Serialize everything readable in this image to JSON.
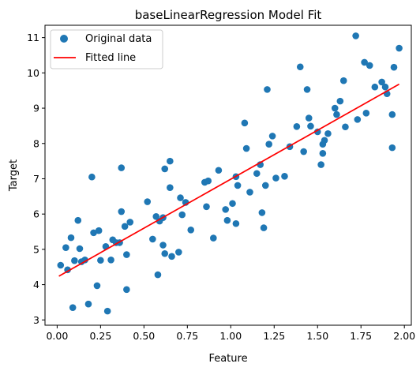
{
  "chart_data": {
    "type": "scatter",
    "title": "baseLinearRegression Model Fit",
    "xlabel": "Feature",
    "ylabel": "Target",
    "xlim": [
      -0.07,
      2.04
    ],
    "ylim": [
      2.85,
      11.35
    ],
    "xticks": [
      0.0,
      0.25,
      0.5,
      0.75,
      1.0,
      1.25,
      1.5,
      1.75,
      2.0
    ],
    "xtick_labels": [
      "0.00",
      "0.25",
      "0.50",
      "0.75",
      "1.00",
      "1.25",
      "1.50",
      "1.75",
      "2.00"
    ],
    "yticks": [
      3,
      4,
      5,
      6,
      7,
      8,
      9,
      10,
      11
    ],
    "ytick_labels": [
      "3",
      "4",
      "5",
      "6",
      "7",
      "8",
      "9",
      "10",
      "11"
    ],
    "legend_position": "top-left",
    "series": [
      {
        "name": "Original data",
        "kind": "scatter",
        "color": "#1f77b4",
        "points": [
          [
            0.02,
            4.55
          ],
          [
            0.05,
            5.05
          ],
          [
            0.06,
            4.42
          ],
          [
            0.08,
            5.33
          ],
          [
            0.09,
            3.35
          ],
          [
            0.1,
            4.68
          ],
          [
            0.12,
            5.82
          ],
          [
            0.13,
            5.02
          ],
          [
            0.14,
            4.65
          ],
          [
            0.16,
            4.7
          ],
          [
            0.18,
            3.45
          ],
          [
            0.2,
            7.05
          ],
          [
            0.21,
            5.47
          ],
          [
            0.23,
            3.97
          ],
          [
            0.24,
            5.53
          ],
          [
            0.25,
            4.69
          ],
          [
            0.28,
            5.08
          ],
          [
            0.29,
            3.25
          ],
          [
            0.31,
            4.7
          ],
          [
            0.32,
            5.27
          ],
          [
            0.34,
            5.19
          ],
          [
            0.36,
            5.19
          ],
          [
            0.37,
            6.07
          ],
          [
            0.37,
            7.31
          ],
          [
            0.39,
            5.65
          ],
          [
            0.4,
            3.86
          ],
          [
            0.4,
            4.85
          ],
          [
            0.42,
            5.77
          ],
          [
            0.52,
            6.35
          ],
          [
            0.55,
            5.29
          ],
          [
            0.57,
            5.93
          ],
          [
            0.58,
            4.28
          ],
          [
            0.59,
            5.8
          ],
          [
            0.61,
            5.9
          ],
          [
            0.61,
            5.12
          ],
          [
            0.62,
            4.88
          ],
          [
            0.62,
            7.28
          ],
          [
            0.65,
            7.5
          ],
          [
            0.65,
            6.75
          ],
          [
            0.66,
            4.8
          ],
          [
            0.7,
            4.92
          ],
          [
            0.71,
            6.46
          ],
          [
            0.72,
            5.98
          ],
          [
            0.74,
            6.33
          ],
          [
            0.77,
            5.55
          ],
          [
            0.85,
            6.9
          ],
          [
            0.86,
            6.21
          ],
          [
            0.87,
            6.94
          ],
          [
            0.9,
            5.32
          ],
          [
            0.93,
            7.24
          ],
          [
            0.97,
            6.13
          ],
          [
            0.98,
            5.82
          ],
          [
            1.01,
            6.3
          ],
          [
            1.03,
            7.06
          ],
          [
            1.03,
            5.73
          ],
          [
            1.04,
            6.81
          ],
          [
            1.08,
            8.58
          ],
          [
            1.09,
            7.86
          ],
          [
            1.11,
            6.62
          ],
          [
            1.15,
            7.15
          ],
          [
            1.17,
            7.4
          ],
          [
            1.18,
            6.04
          ],
          [
            1.19,
            5.61
          ],
          [
            1.2,
            6.81
          ],
          [
            1.21,
            9.53
          ],
          [
            1.22,
            7.98
          ],
          [
            1.24,
            8.21
          ],
          [
            1.26,
            7.02
          ],
          [
            1.31,
            7.07
          ],
          [
            1.34,
            7.91
          ],
          [
            1.38,
            8.48
          ],
          [
            1.4,
            10.17
          ],
          [
            1.42,
            7.77
          ],
          [
            1.44,
            9.53
          ],
          [
            1.45,
            8.72
          ],
          [
            1.46,
            8.49
          ],
          [
            1.5,
            8.33
          ],
          [
            1.52,
            7.4
          ],
          [
            1.53,
            7.72
          ],
          [
            1.53,
            7.98
          ],
          [
            1.54,
            8.09
          ],
          [
            1.56,
            8.28
          ],
          [
            1.6,
            9.0
          ],
          [
            1.61,
            8.82
          ],
          [
            1.63,
            9.2
          ],
          [
            1.65,
            9.78
          ],
          [
            1.66,
            8.47
          ],
          [
            1.72,
            11.05
          ],
          [
            1.73,
            8.68
          ],
          [
            1.77,
            10.3
          ],
          [
            1.78,
            8.86
          ],
          [
            1.8,
            10.21
          ],
          [
            1.83,
            9.6
          ],
          [
            1.87,
            9.74
          ],
          [
            1.89,
            9.6
          ],
          [
            1.9,
            9.41
          ],
          [
            1.93,
            8.82
          ],
          [
            1.93,
            7.88
          ],
          [
            1.94,
            10.16
          ],
          [
            1.97,
            10.7
          ]
        ]
      },
      {
        "name": "Fitted line",
        "kind": "line",
        "color": "#ff0000",
        "x": [
          0.01,
          1.97
        ],
        "y": [
          4.24,
          9.68
        ]
      }
    ]
  }
}
